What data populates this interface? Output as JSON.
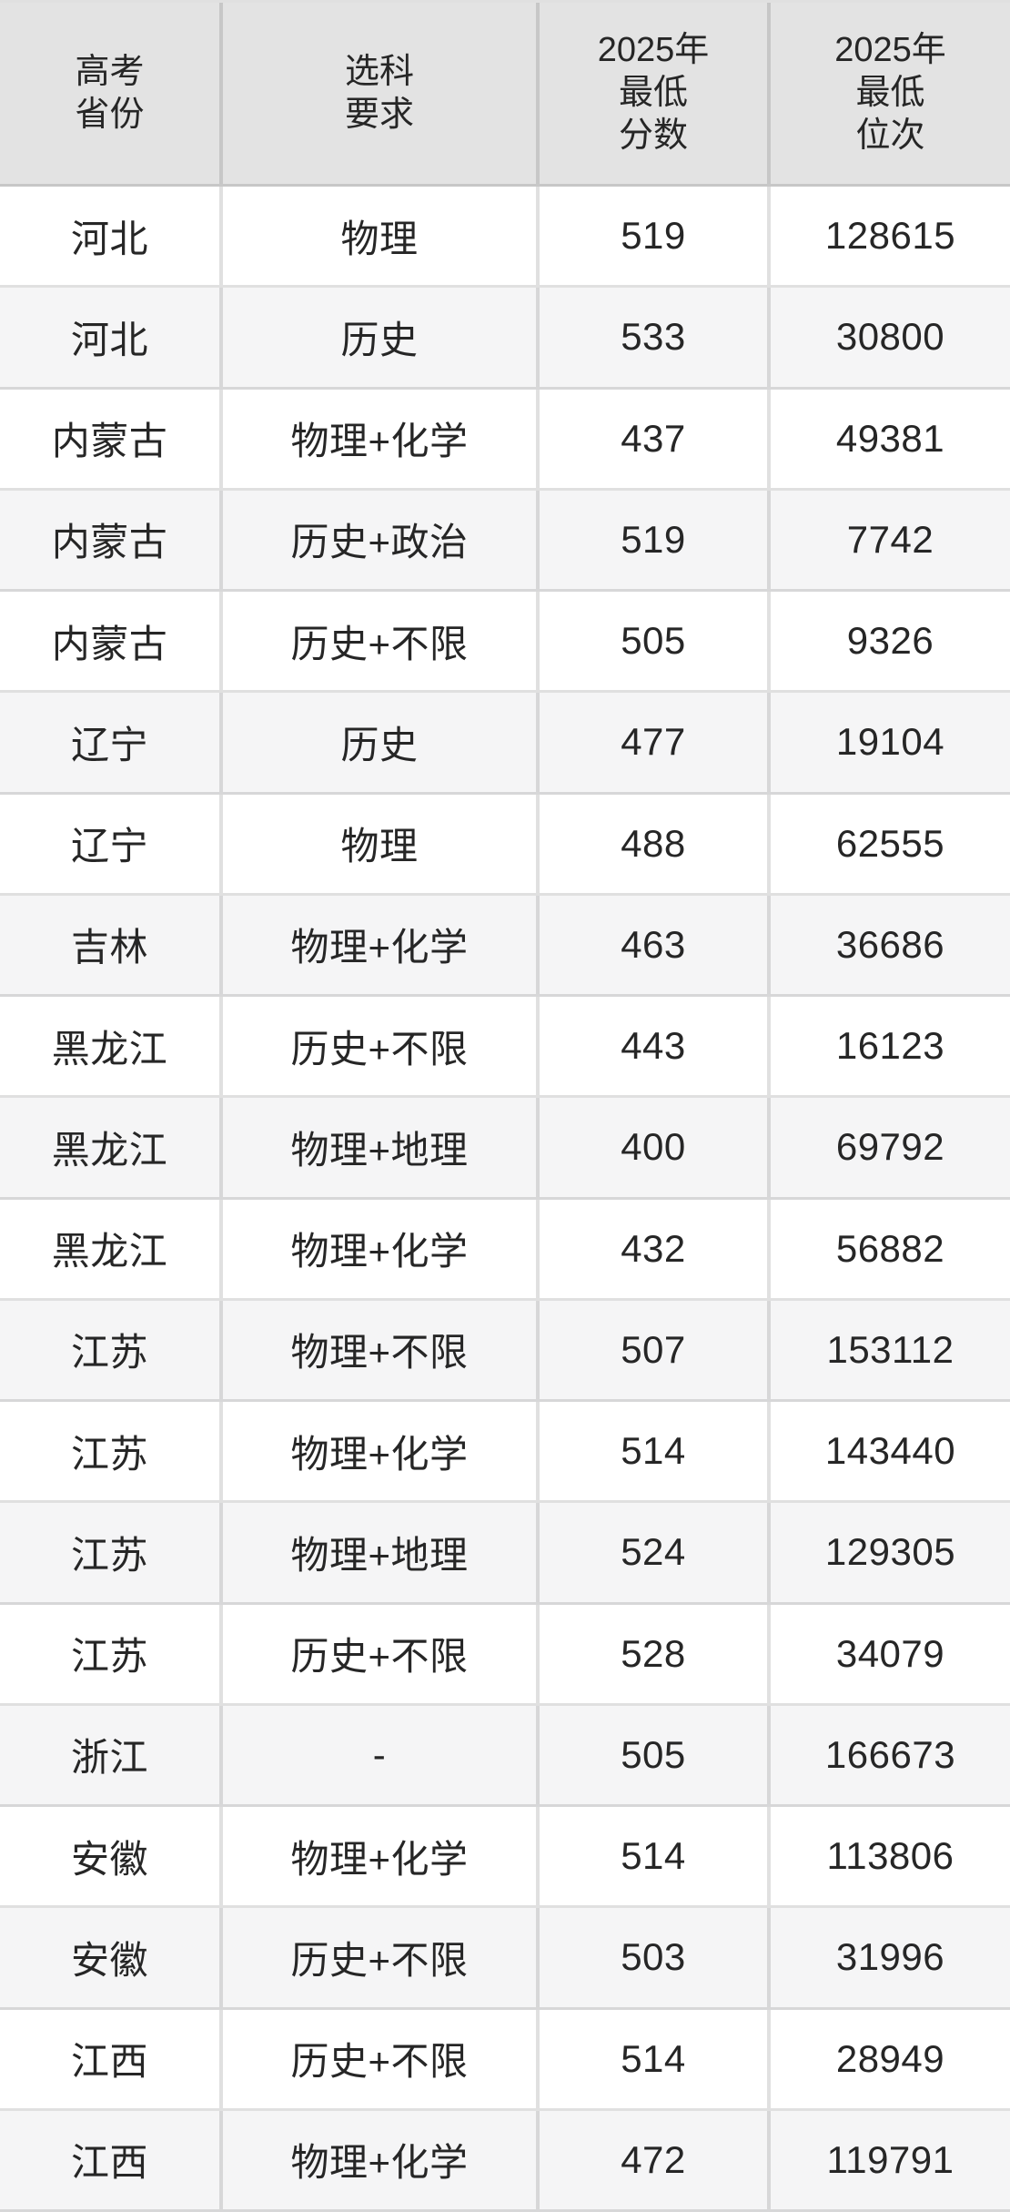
{
  "colors": {
    "header_bg": "#e3e3e3",
    "row_bg": "#ffffff",
    "row_alt_bg": "#f5f5f6",
    "border": "#0000001f",
    "text": "#262626"
  },
  "table": {
    "header": {
      "province_lines": [
        "高考",
        "省份"
      ],
      "subjects_lines": [
        "选科",
        "要求"
      ],
      "score_lines": [
        "2025年",
        "最低",
        "分数"
      ],
      "rank_lines": [
        "2025年",
        "最低",
        "位次"
      ]
    },
    "rows": [
      {
        "province": "河北",
        "subjects": "物理",
        "score": 519,
        "rank": 128615
      },
      {
        "province": "河北",
        "subjects": "历史",
        "score": 533,
        "rank": 30800
      },
      {
        "province": "内蒙古",
        "subjects": "物理+化学",
        "score": 437,
        "rank": 49381
      },
      {
        "province": "内蒙古",
        "subjects": "历史+政治",
        "score": 519,
        "rank": 7742
      },
      {
        "province": "内蒙古",
        "subjects": "历史+不限",
        "score": 505,
        "rank": 9326
      },
      {
        "province": "辽宁",
        "subjects": "历史",
        "score": 477,
        "rank": 19104
      },
      {
        "province": "辽宁",
        "subjects": "物理",
        "score": 488,
        "rank": 62555
      },
      {
        "province": "吉林",
        "subjects": "物理+化学",
        "score": 463,
        "rank": 36686
      },
      {
        "province": "黑龙江",
        "subjects": "历史+不限",
        "score": 443,
        "rank": 16123
      },
      {
        "province": "黑龙江",
        "subjects": "物理+地理",
        "score": 400,
        "rank": 69792
      },
      {
        "province": "黑龙江",
        "subjects": "物理+化学",
        "score": 432,
        "rank": 56882
      },
      {
        "province": "江苏",
        "subjects": "物理+不限",
        "score": 507,
        "rank": 153112
      },
      {
        "province": "江苏",
        "subjects": "物理+化学",
        "score": 514,
        "rank": 143440
      },
      {
        "province": "江苏",
        "subjects": "物理+地理",
        "score": 524,
        "rank": 129305
      },
      {
        "province": "江苏",
        "subjects": "历史+不限",
        "score": 528,
        "rank": 34079
      },
      {
        "province": "浙江",
        "subjects": "-",
        "score": 505,
        "rank": 166673
      },
      {
        "province": "安徽",
        "subjects": "物理+化学",
        "score": 514,
        "rank": 113806
      },
      {
        "province": "安徽",
        "subjects": "历史+不限",
        "score": 503,
        "rank": 31996
      },
      {
        "province": "江西",
        "subjects": "历史+不限",
        "score": 514,
        "rank": 28949
      },
      {
        "province": "江西",
        "subjects": "物理+化学",
        "score": 472,
        "rank": 119791
      }
    ]
  }
}
